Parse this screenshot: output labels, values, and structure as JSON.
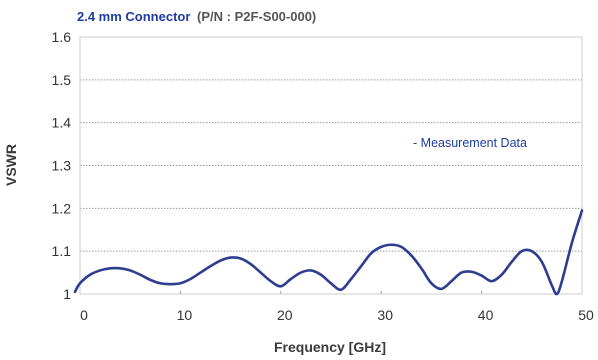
{
  "chart_data": {
    "type": "line",
    "title": "2.4 mm Connector",
    "subtitle": "(P/N : P2F-S00-000)",
    "xlabel": "Frequency [GHz]",
    "ylabel": "VSWR",
    "xlim": [
      0,
      50
    ],
    "ylim": [
      1,
      1.6
    ],
    "xticks": [
      "0",
      "10",
      "20",
      "30",
      "40",
      "50"
    ],
    "yticks": [
      "1",
      "1.1",
      "1.2",
      "1.3",
      "1.4",
      "1.5",
      "1.6"
    ],
    "grid": "horizontal dotted",
    "annotation": "- Measurement Data",
    "colors": {
      "line": "#2e3d8f",
      "title": "#1f3c9c",
      "grid": "#9a9a9a",
      "frame": "#cccccc"
    },
    "series": [
      {
        "x": [
          -0.5,
          0,
          1,
          2,
          3,
          4,
          5,
          6,
          7,
          8,
          9,
          10,
          11,
          12,
          13,
          14,
          15,
          16,
          17,
          18,
          19,
          20,
          21,
          22,
          23,
          24,
          25,
          26,
          27,
          28,
          29,
          30,
          31,
          32,
          33,
          34,
          35,
          36,
          37,
          38,
          39,
          40,
          41,
          42,
          43,
          44,
          45,
          46,
          47,
          47.5,
          48,
          49,
          50
        ],
        "y": [
          1.005,
          1.025,
          1.045,
          1.055,
          1.06,
          1.06,
          1.055,
          1.045,
          1.033,
          1.025,
          1.023,
          1.025,
          1.035,
          1.05,
          1.065,
          1.078,
          1.085,
          1.083,
          1.07,
          1.05,
          1.03,
          1.018,
          1.035,
          1.05,
          1.055,
          1.045,
          1.025,
          1.01,
          1.035,
          1.065,
          1.095,
          1.11,
          1.115,
          1.11,
          1.09,
          1.06,
          1.025,
          1.012,
          1.03,
          1.05,
          1.052,
          1.043,
          1.03,
          1.045,
          1.075,
          1.1,
          1.1,
          1.075,
          1.02,
          1.0,
          1.03,
          1.12,
          1.195
        ]
      }
    ]
  }
}
